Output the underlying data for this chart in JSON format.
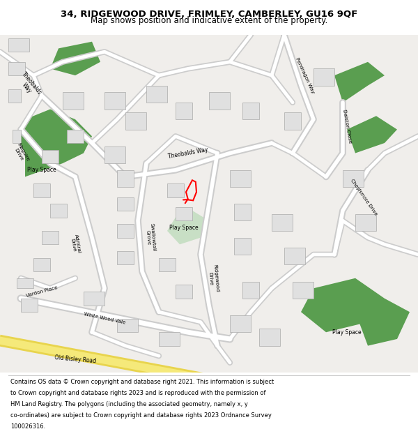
{
  "title_line1": "34, RIDGEWOOD DRIVE, FRIMLEY, CAMBERLEY, GU16 9QF",
  "title_line2": "Map shows position and indicative extent of the property.",
  "bg_color": "#f5f5f5",
  "map_bg": "#f0eeeb",
  "road_color": "#ffffff",
  "road_outline": "#cccccc",
  "building_color": "#e0e0e0",
  "building_outline": "#aaaaaa",
  "green_color": "#5a9e50",
  "green_light": "#c8dfc5",
  "plot_color": "#ff0000",
  "road_yellow": "#f5e97a",
  "road_yellow_outline": "#e8d44d",
  "footer_lines": [
    "Contains OS data © Crown copyright and database right 2021. This information is subject",
    "to Crown copyright and database rights 2023 and is reproduced with the permission of",
    "HM Land Registry. The polygons (including the associated geometry, namely x, y",
    "co-ordinates) are subject to Crown copyright and database rights 2023 Ordnance Survey",
    "100026316."
  ]
}
